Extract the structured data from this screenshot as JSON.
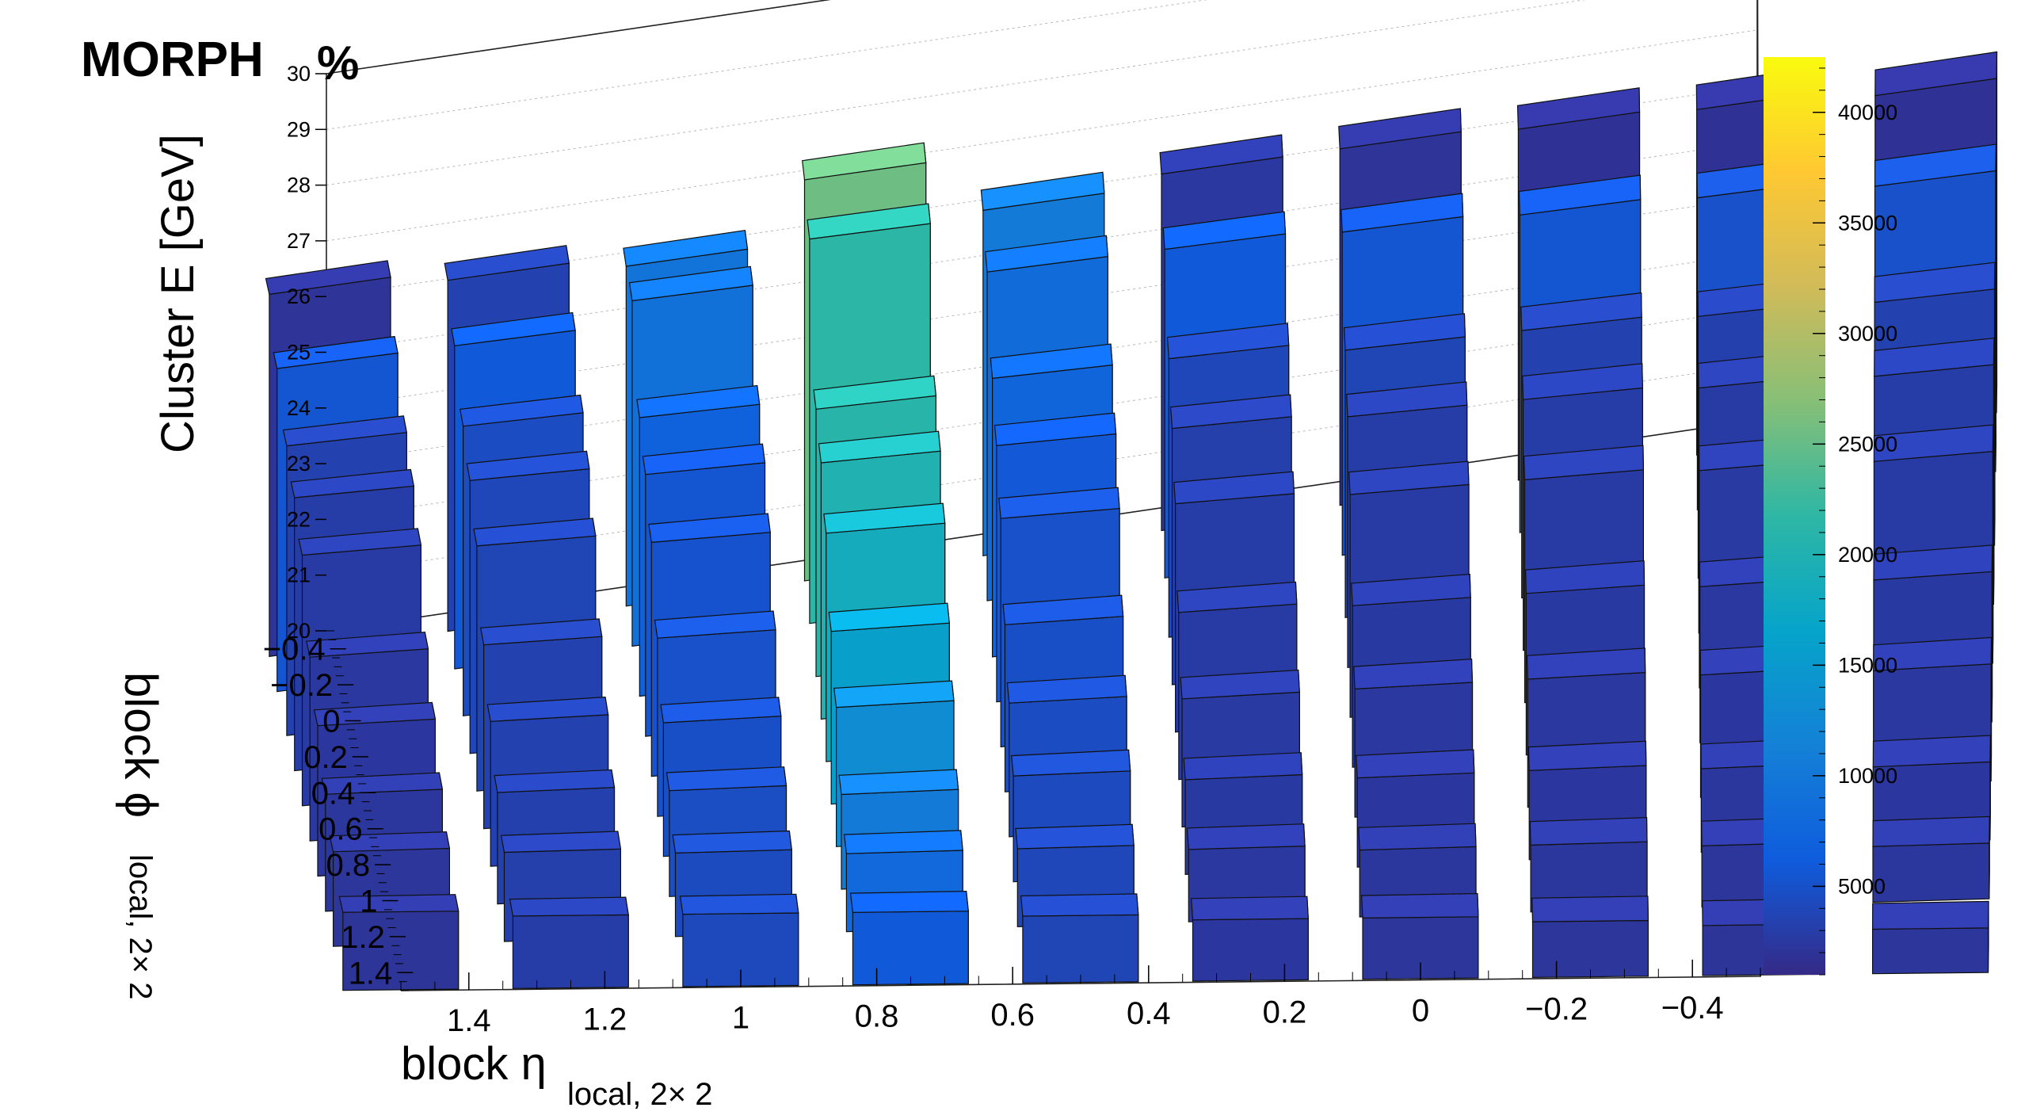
{
  "chart_data": {
    "type": "lego3d",
    "title": "MORPH",
    "title_suffix": "%",
    "xlabel_main": "block η",
    "xlabel_sub": "local, 2× 2",
    "ylabel_main": "block ϕ",
    "ylabel_sub": "local, 2× 2",
    "zlabel": "Cluster E  [GeV]",
    "x_ticks": [
      "1.4",
      "1.2",
      "1",
      "0.8",
      "0.6",
      "0.4",
      "0.2",
      "0",
      "−0.2",
      "−0.4"
    ],
    "y_ticks": [
      "−0.4",
      "−0.2",
      "0",
      "0.2",
      "0.4",
      "0.6",
      "0.8",
      "1",
      "1.2",
      "1.4"
    ],
    "z_ticks": [
      "20",
      "21",
      "22",
      "23",
      "24",
      "25",
      "26",
      "27",
      "28",
      "29",
      "30"
    ],
    "z_range": [
      20,
      30
    ],
    "x_range": [
      1.5,
      -0.5
    ],
    "y_range": [
      -0.5,
      1.5
    ],
    "colorbar_ticks": [
      "5000",
      "10000",
      "15000",
      "20000",
      "25000",
      "30000",
      "35000",
      "40000"
    ],
    "colorbar_range": [
      1000,
      42500
    ],
    "colormap": [
      "#352a87",
      "#0f5cdd",
      "#1481d6",
      "#06a4ca",
      "#2eb7a4",
      "#87bf77",
      "#d1bb59",
      "#fec832",
      "#f9fb0e"
    ],
    "grid": true,
    "bins": {
      "eta_centers": [
        1.5,
        1.25,
        1.0,
        0.75,
        0.5,
        0.25,
        0.0,
        -0.25,
        -0.5,
        -0.75
      ],
      "phi_rows": [
        {
          "phi": -0.45,
          "energies": [
            26.5,
            26.3,
            26.1,
            27.2,
            26.2,
            26.4,
            26.4,
            26.3,
            26.2,
            26.0
          ]
        },
        {
          "phi": -0.25,
          "energies": [
            25.8,
            25.8,
            26.2,
            26.9,
            25.9,
            25.9,
            25.8,
            25.7,
            25.6,
            25.4
          ]
        },
        {
          "phi": 0.0,
          "energies": [
            25.2,
            25.2,
            25.0,
            24.8,
            25.0,
            25.0,
            24.8,
            24.8,
            24.7,
            24.6
          ]
        },
        {
          "phi": 0.2,
          "energies": [
            24.9,
            24.9,
            24.7,
            24.6,
            24.6,
            24.6,
            24.5,
            24.5,
            24.4,
            24.3
          ]
        },
        {
          "phi": 0.4,
          "energies": [
            24.5,
            24.4,
            24.2,
            24.1,
            24.1,
            24.1,
            24.0,
            24.0,
            23.9,
            23.8
          ]
        },
        {
          "phi": 0.6,
          "energies": [
            23.3,
            23.3,
            23.2,
            23.1,
            23.0,
            23.0,
            22.9,
            22.9,
            22.8,
            22.7
          ]
        },
        {
          "phi": 0.8,
          "energies": [
            22.7,
            22.6,
            22.4,
            22.5,
            22.4,
            22.3,
            22.3,
            22.3,
            22.2,
            22.1
          ]
        },
        {
          "phi": 1.0,
          "energies": [
            22.1,
            22.0,
            21.9,
            21.7,
            21.9,
            21.7,
            21.6,
            21.6,
            21.5,
            21.4
          ]
        },
        {
          "phi": 1.2,
          "energies": [
            21.7,
            21.6,
            21.5,
            21.4,
            21.4,
            21.3,
            21.2,
            21.2,
            21.1,
            21.0
          ]
        },
        {
          "phi": 1.45,
          "energies": [
            21.4,
            21.3,
            21.3,
            21.3,
            21.2,
            21.1,
            21.1,
            21.0,
            20.9,
            20.8
          ]
        }
      ],
      "counts": [
        [
          2000,
          3500,
          9500,
          25500,
          10500,
          2500,
          2000,
          1800,
          1800,
          1800
        ],
        [
          5500,
          6000,
          9000,
          21500,
          8500,
          6000,
          5500,
          5500,
          5000,
          5000
        ],
        [
          3500,
          4500,
          7000,
          21000,
          7500,
          4000,
          3800,
          3500,
          3300,
          3500
        ],
        [
          3000,
          4000,
          5500,
          20000,
          5800,
          3200,
          3000,
          3000,
          2800,
          3000
        ],
        [
          2800,
          3800,
          5200,
          18500,
          5000,
          3000,
          2800,
          2800,
          2700,
          2800
        ],
        [
          2500,
          3500,
          5000,
          16000,
          4800,
          2800,
          2600,
          2600,
          2500,
          2600
        ],
        [
          2400,
          3400,
          4800,
          13000,
          4500,
          2700,
          2500,
          2500,
          2400,
          2500
        ],
        [
          2300,
          3300,
          4600,
          10500,
          4300,
          2600,
          2400,
          2400,
          2300,
          2400
        ],
        [
          2200,
          3200,
          4400,
          8000,
          4000,
          2500,
          2300,
          2300,
          2200,
          2300
        ],
        [
          2100,
          3000,
          4200,
          6000,
          3800,
          2400,
          2200,
          2200,
          2100,
          2200
        ]
      ]
    }
  }
}
